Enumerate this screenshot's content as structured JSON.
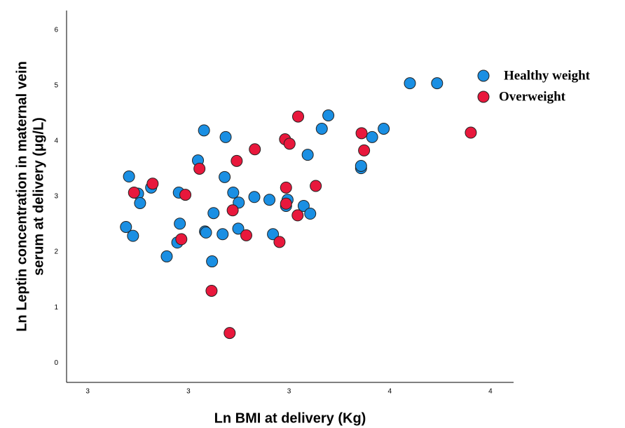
{
  "chart_data": {
    "type": "scatter",
    "xlabel": "Ln BMI at  delivery (Kg)",
    "ylabel": [
      "Ln Leptin concentration in maternal vein",
      "serum at delivery (μg/L)"
    ],
    "xlim": [
      2.958,
      3.846
    ],
    "ylim": [
      -0.35,
      6.35
    ],
    "xticks": [
      {
        "value": 3.0,
        "label": "3"
      },
      {
        "value": 3.2,
        "label": "3"
      },
      {
        "value": 3.4,
        "label": "3"
      },
      {
        "value": 3.6,
        "label": "4"
      },
      {
        "value": 3.8,
        "label": "4"
      }
    ],
    "yticks": [
      0,
      1,
      2,
      3,
      4,
      5,
      6
    ],
    "grid": false,
    "legend": "right",
    "series": [
      {
        "name": "Healthy weight",
        "color": "#1a8fe3",
        "x": [
          3.076,
          3.082,
          3.09,
          3.1,
          3.104,
          3.126,
          3.157,
          3.178,
          3.181,
          3.183,
          3.219,
          3.231,
          3.233,
          3.235,
          3.247,
          3.25,
          3.268,
          3.272,
          3.274,
          3.289,
          3.3,
          3.299,
          3.331,
          3.361,
          3.368,
          3.394,
          3.397,
          3.429,
          3.437,
          3.442,
          3.465,
          3.478,
          3.543,
          3.543,
          3.565,
          3.588,
          3.64,
          3.694
        ],
        "values": [
          2.45,
          3.36,
          2.29,
          3.05,
          2.88,
          3.16,
          1.92,
          2.17,
          3.07,
          2.51,
          3.65,
          4.19,
          2.37,
          2.35,
          1.83,
          2.7,
          2.32,
          3.35,
          4.07,
          3.07,
          2.89,
          2.42,
          2.99,
          2.94,
          2.32,
          2.83,
          2.94,
          2.83,
          3.75,
          2.69,
          4.22,
          4.46,
          3.51,
          3.55,
          4.07,
          4.22,
          5.04,
          5.04
        ]
      },
      {
        "name": "Overweight",
        "color": "#e8183c",
        "x": [
          3.092,
          3.129,
          3.186,
          3.194,
          3.222,
          3.246,
          3.282,
          3.288,
          3.296,
          3.315,
          3.332,
          3.381,
          3.392,
          3.394,
          3.394,
          3.401,
          3.417,
          3.418,
          3.453,
          3.544,
          3.549,
          3.761
        ],
        "values": [
          3.07,
          3.23,
          2.23,
          3.03,
          3.5,
          1.3,
          0.54,
          2.75,
          3.64,
          2.3,
          3.85,
          2.18,
          4.03,
          3.16,
          2.87,
          3.95,
          2.66,
          4.44,
          3.19,
          4.14,
          3.83,
          4.15
        ]
      }
    ]
  }
}
